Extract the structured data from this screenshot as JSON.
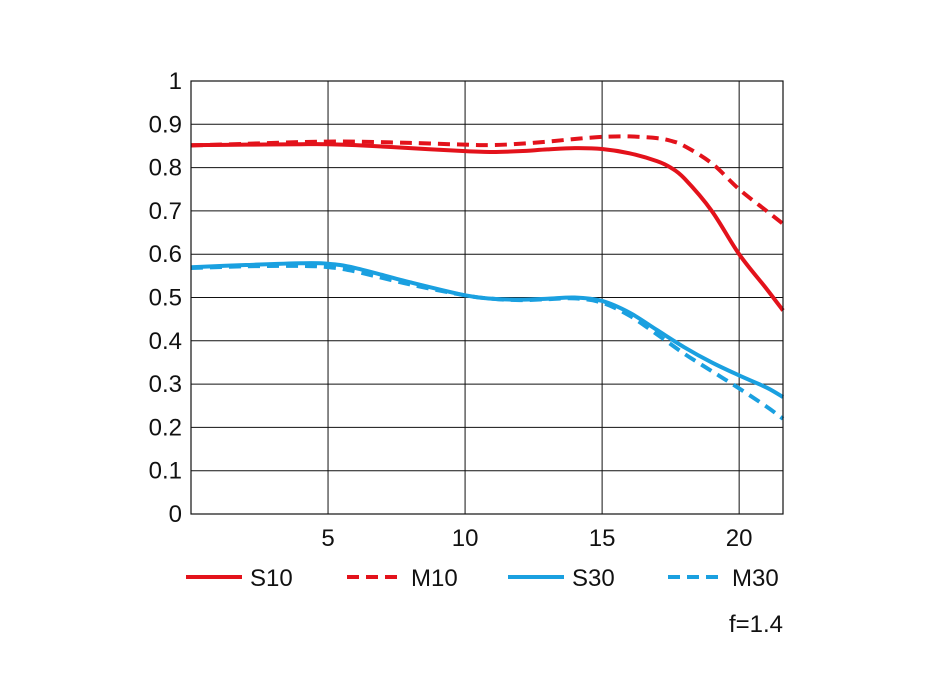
{
  "chart_data": {
    "type": "line",
    "title": "",
    "xlabel": "",
    "ylabel": "",
    "xlim": [
      0,
      21.6
    ],
    "ylim": [
      0,
      1
    ],
    "x_ticks": [
      "5",
      "10",
      "15",
      "20"
    ],
    "y_ticks": [
      "0",
      "0.1",
      "0.2",
      "0.3",
      "0.4",
      "0.5",
      "0.6",
      "0.7",
      "0.8",
      "0.9",
      "1"
    ],
    "grid": true,
    "legend_position": "bottom",
    "series": [
      {
        "name": "S10",
        "color": "#e3121b",
        "dash": "solid",
        "x": [
          0,
          2,
          4,
          5,
          6,
          8,
          10,
          11,
          12,
          13,
          14,
          15,
          16,
          17,
          17.5,
          18,
          19,
          20,
          21,
          21.6
        ],
        "y": [
          0.852,
          0.853,
          0.854,
          0.854,
          0.852,
          0.845,
          0.838,
          0.836,
          0.838,
          0.842,
          0.845,
          0.843,
          0.833,
          0.815,
          0.8,
          0.775,
          0.7,
          0.6,
          0.52,
          0.47
        ]
      },
      {
        "name": "M10",
        "color": "#e3121b",
        "dash": "dashed",
        "x": [
          0,
          2,
          4,
          5,
          6,
          8,
          10,
          11,
          12,
          13,
          14,
          15,
          16,
          17,
          17.5,
          18,
          19,
          20,
          21,
          21.6
        ],
        "y": [
          0.851,
          0.855,
          0.859,
          0.86,
          0.86,
          0.857,
          0.853,
          0.852,
          0.855,
          0.86,
          0.866,
          0.871,
          0.872,
          0.868,
          0.862,
          0.85,
          0.81,
          0.75,
          0.7,
          0.67
        ]
      },
      {
        "name": "S30",
        "color": "#1aa0e0",
        "dash": "solid",
        "x": [
          0,
          2,
          4,
          5,
          6,
          8,
          10,
          11,
          12,
          13,
          14,
          15,
          16,
          17,
          18,
          19,
          20,
          21,
          21.6
        ],
        "y": [
          0.57,
          0.575,
          0.579,
          0.578,
          0.568,
          0.535,
          0.505,
          0.497,
          0.495,
          0.497,
          0.5,
          0.492,
          0.465,
          0.425,
          0.385,
          0.35,
          0.32,
          0.292,
          0.27
        ]
      },
      {
        "name": "M30",
        "color": "#1aa0e0",
        "dash": "dashed",
        "x": [
          0,
          2,
          4,
          5,
          6,
          8,
          10,
          11,
          12,
          13,
          14,
          15,
          16,
          17,
          18,
          19,
          20,
          21,
          21.6
        ],
        "y": [
          0.568,
          0.572,
          0.573,
          0.57,
          0.56,
          0.53,
          0.505,
          0.497,
          0.494,
          0.496,
          0.498,
          0.488,
          0.458,
          0.415,
          0.37,
          0.33,
          0.29,
          0.248,
          0.22
        ]
      }
    ]
  },
  "note": "f=1.4"
}
